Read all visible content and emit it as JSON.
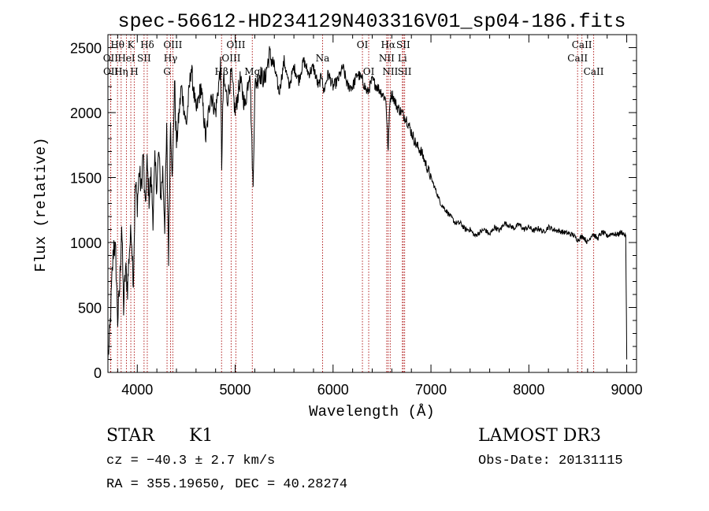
{
  "chart_data": {
    "type": "line",
    "title": "spec-56612-HD234129N403316V01_sp04-186.fits",
    "xlabel": "Wavelength (Å)",
    "ylabel": "Flux (relative)",
    "xlim": [
      3700,
      9100
    ],
    "ylim": [
      0,
      2600
    ],
    "x_ticks": [
      4000,
      5000,
      6000,
      7000,
      8000,
      9000
    ],
    "y_ticks": [
      0,
      500,
      1000,
      1500,
      2000,
      2500
    ],
    "x_tick_labels": [
      "4000",
      "5000",
      "6000",
      "7000",
      "8000",
      "9000"
    ],
    "y_tick_labels": [
      "0",
      "500",
      "1000",
      "1500",
      "2000",
      "2500"
    ],
    "series": [
      {
        "name": "flux",
        "x": [
          3700,
          3720,
          3740,
          3760,
          3780,
          3800,
          3820,
          3840,
          3860,
          3880,
          3900,
          3920,
          3940,
          3960,
          3980,
          4000,
          4020,
          4040,
          4060,
          4080,
          4100,
          4120,
          4140,
          4160,
          4180,
          4200,
          4220,
          4240,
          4260,
          4280,
          4300,
          4320,
          4340,
          4360,
          4380,
          4400,
          4450,
          4500,
          4550,
          4600,
          4650,
          4700,
          4750,
          4800,
          4850,
          4862,
          4880,
          4920,
          4960,
          5000,
          5050,
          5100,
          5150,
          5183,
          5200,
          5250,
          5300,
          5350,
          5400,
          5450,
          5500,
          5550,
          5600,
          5650,
          5700,
          5750,
          5800,
          5850,
          5890,
          5900,
          5950,
          6000,
          6050,
          6100,
          6150,
          6200,
          6250,
          6300,
          6350,
          6400,
          6450,
          6500,
          6540,
          6563,
          6580,
          6600,
          6650,
          6700,
          6750,
          6800,
          6850,
          6900,
          6950,
          7000,
          7050,
          7100,
          7150,
          7200,
          7250,
          7300,
          7350,
          7400,
          7450,
          7500,
          7550,
          7600,
          7650,
          7700,
          7750,
          7800,
          7850,
          7900,
          7950,
          8000,
          8050,
          8100,
          8150,
          8200,
          8250,
          8300,
          8350,
          8400,
          8450,
          8500,
          8550,
          8600,
          8650,
          8700,
          8750,
          8800,
          8850,
          8900,
          8950,
          8990,
          9000
        ],
        "y": [
          100,
          300,
          700,
          1000,
          900,
          400,
          650,
          1150,
          500,
          800,
          650,
          950,
          1100,
          700,
          1450,
          1300,
          1550,
          1400,
          1700,
          1250,
          1600,
          1350,
          1500,
          1200,
          1600,
          1450,
          1700,
          1350,
          1550,
          1150,
          1850,
          900,
          1950,
          1500,
          2250,
          1750,
          2200,
          1900,
          2350,
          2000,
          2200,
          1800,
          2150,
          2000,
          2350,
          1600,
          2250,
          2100,
          2300,
          2000,
          2250,
          2050,
          2350,
          1400,
          2200,
          2300,
          2250,
          2450,
          2350,
          2150,
          2400,
          2200,
          2350,
          2250,
          2400,
          2300,
          2350,
          2200,
          2300,
          2150,
          2300,
          2200,
          2250,
          2350,
          2200,
          2200,
          2300,
          2250,
          2150,
          2250,
          2200,
          2150,
          2100,
          1700,
          2100,
          2150,
          2050,
          2000,
          1950,
          1850,
          1750,
          1700,
          1600,
          1500,
          1400,
          1300,
          1250,
          1200,
          1150,
          1150,
          1100,
          1100,
          1050,
          1080,
          1100,
          1060,
          1120,
          1090,
          1150,
          1130,
          1110,
          1140,
          1100,
          1120,
          1090,
          1110,
          1080,
          1120,
          1100,
          1090,
          1080,
          1070,
          1060,
          1020,
          1050,
          1000,
          1070,
          1030,
          1080,
          1050,
          1070,
          1060,
          1080,
          1050,
          100
        ]
      }
    ],
    "lines": [
      {
        "label": "Hθ",
        "wl": 3798,
        "row": 1
      },
      {
        "label": "OII",
        "wl": 3727,
        "row": 2
      },
      {
        "label": "OII",
        "wl": 3729,
        "row": 3
      },
      {
        "label": "HeI",
        "wl": 3889,
        "row": 2
      },
      {
        "label": "Hη",
        "wl": 3835,
        "row": 3
      },
      {
        "label": "K",
        "wl": 3934,
        "row": 1
      },
      {
        "label": "SII",
        "wl": 4069,
        "row": 2
      },
      {
        "label": "H",
        "wl": 3969,
        "row": 3
      },
      {
        "label": "Hδ",
        "wl": 4102,
        "row": 1
      },
      {
        "label": "OIII",
        "wl": 4363,
        "row": 1
      },
      {
        "label": "Hγ",
        "wl": 4340,
        "row": 2
      },
      {
        "label": "G",
        "wl": 4304,
        "row": 3
      },
      {
        "label": "OIII",
        "wl": 5007,
        "row": 1
      },
      {
        "label": "OIII",
        "wl": 4959,
        "row": 2
      },
      {
        "label": "Hβ",
        "wl": 4861,
        "row": 3
      },
      {
        "label": "Mg",
        "wl": 5175,
        "row": 3
      },
      {
        "label": "Na",
        "wl": 5893,
        "row": 2
      },
      {
        "label": "OI",
        "wl": 6300,
        "row": 1
      },
      {
        "label": "OI",
        "wl": 6364,
        "row": 3
      },
      {
        "label": "Hα",
        "wl": 6563,
        "row": 1
      },
      {
        "label": "SII",
        "wl": 6717,
        "row": 1
      },
      {
        "label": "NII",
        "wl": 6548,
        "row": 2
      },
      {
        "label": "Li",
        "wl": 6708,
        "row": 2
      },
      {
        "label": "NII",
        "wl": 6584,
        "row": 3
      },
      {
        "label": "SII",
        "wl": 6731,
        "row": 3
      },
      {
        "label": "CaII",
        "wl": 8542,
        "row": 1
      },
      {
        "label": "CaII",
        "wl": 8498,
        "row": 2
      },
      {
        "label": "CaII",
        "wl": 8662,
        "row": 3
      }
    ]
  },
  "info": {
    "object_class": "STAR",
    "subclass": "K1",
    "survey": "LAMOST DR3",
    "cz": "cz = −40.3 ± 2.7 km/s",
    "obs_date": "Obs-Date: 20131115",
    "coords": "RA = 355.19650, DEC =  40.28274"
  },
  "colors": {
    "spectrum": "#000000",
    "line_marker": "#b22222",
    "axis": "#000000",
    "background": "#ffffff"
  }
}
